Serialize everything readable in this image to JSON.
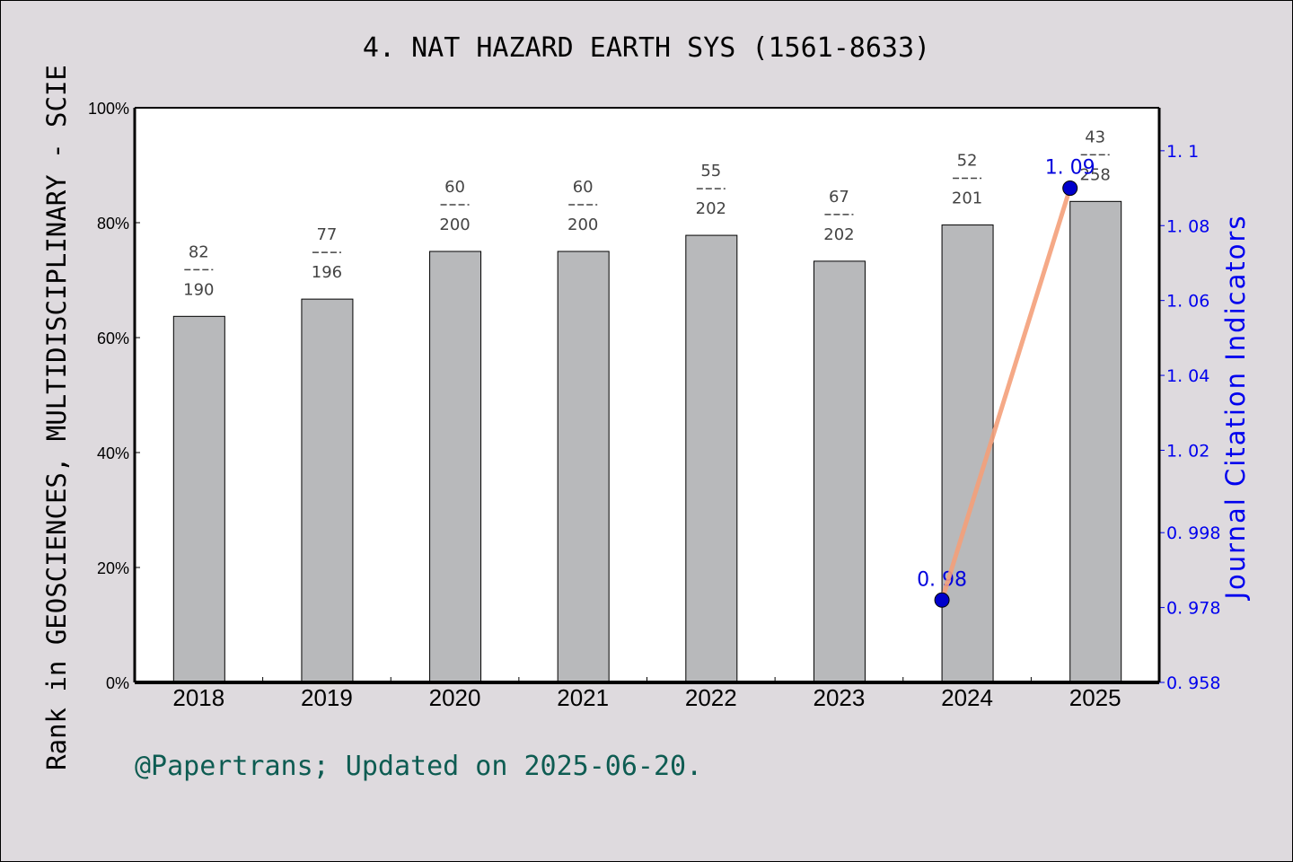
{
  "chart_data": {
    "type": "bar",
    "title": "4. NAT HAZARD EARTH SYS (1561-8633)",
    "xlabel": "",
    "ylabel": "Rank in GEOSCIENCES, MULTIDISCIPLINARY - SCIE",
    "ylabel_right": "Journal Citation Indicators",
    "categories": [
      "2018",
      "2019",
      "2020",
      "2021",
      "2022",
      "2023",
      "2024",
      "2025"
    ],
    "series": [
      {
        "name": "Rank percentile (bar)",
        "type": "bar",
        "values": [
          63.7,
          66.7,
          75.0,
          75.0,
          77.8,
          73.3,
          79.6,
          83.7
        ],
        "labels": [
          {
            "rank": "82",
            "total": "190"
          },
          {
            "rank": "77",
            "total": "196"
          },
          {
            "rank": "60",
            "total": "200"
          },
          {
            "rank": "60",
            "total": "200"
          },
          {
            "rank": "55",
            "total": "202"
          },
          {
            "rank": "67",
            "total": "202"
          },
          {
            "rank": "52",
            "total": "201"
          },
          {
            "rank": "43",
            "total": "258"
          }
        ]
      },
      {
        "name": "Journal Citation Indicators",
        "type": "line",
        "axis": "right",
        "x": [
          "2024",
          "2025"
        ],
        "values": [
          0.98,
          1.09
        ],
        "value_labels": [
          "0.98",
          "1.09"
        ]
      }
    ],
    "ylim": [
      0,
      100
    ],
    "ylim_right": [
      0.958,
      1.11
    ],
    "yticks": [
      "0%",
      "20%",
      "40%",
      "60%",
      "80%",
      "100%"
    ],
    "yticks_right": [
      "0.958",
      "0.978",
      "0.998",
      "1.02",
      "1.04",
      "1.06",
      "1.08",
      "1.1"
    ],
    "grid": false,
    "legend": "none"
  },
  "footer": "@Papertrans; Updated on 2025-06-20.",
  "colors": {
    "bar": "#b8b9bb",
    "line": "#f4a07a",
    "marker": "#0000cc",
    "right_axis": "#0000ee",
    "footer": "#0e5c52",
    "background": "#dedade"
  }
}
